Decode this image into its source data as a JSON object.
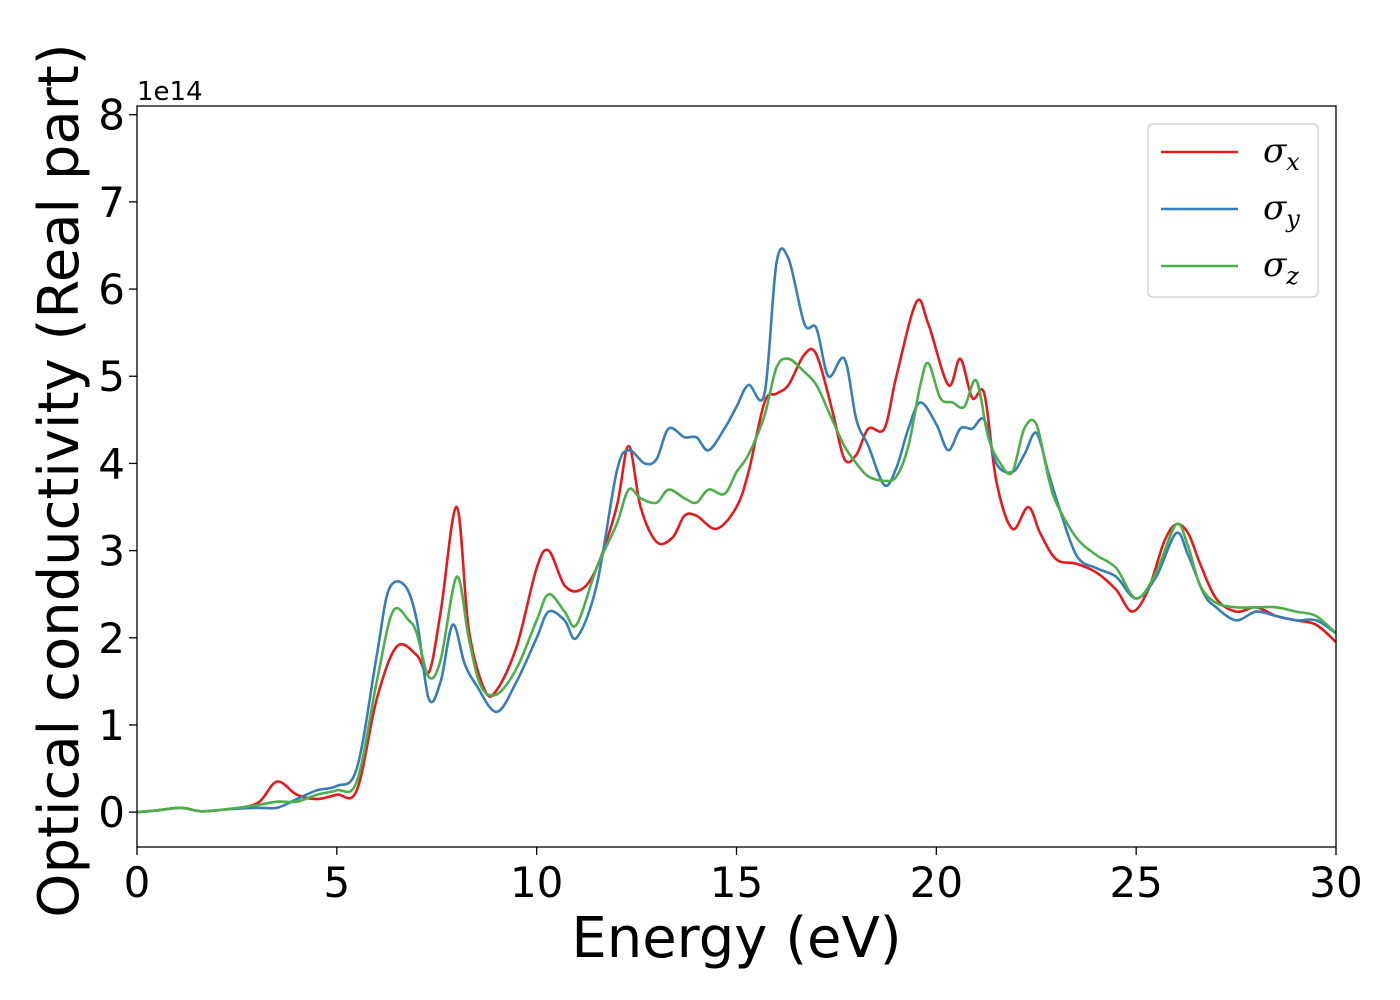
{
  "chart_data": {
    "type": "line",
    "xlabel": "Energy (eV)",
    "ylabel": "Optical conductivity (Real part)",
    "y_offset_label": "1e14",
    "y_scale_factor": 100000000000000.0,
    "xlim": [
      0,
      30
    ],
    "ylim": [
      -0.4,
      8.1
    ],
    "x_ticks": [
      0,
      5,
      10,
      15,
      20,
      25,
      30
    ],
    "x_tick_labels": [
      "0",
      "5",
      "10",
      "15",
      "20",
      "25",
      "30"
    ],
    "y_ticks": [
      0,
      1,
      2,
      3,
      4,
      5,
      6,
      7,
      8
    ],
    "y_tick_labels": [
      "0",
      "1",
      "2",
      "3",
      "4",
      "5",
      "6",
      "7",
      "8"
    ],
    "grid": false,
    "legend_position": "top-right",
    "series": [
      {
        "name": "σx",
        "legend_symbol": "σ",
        "legend_sub": "x",
        "color": "#e41a1c",
        "x": [
          0,
          0.5,
          1.1,
          1.6,
          2.2,
          3.0,
          3.5,
          4.0,
          4.5,
          5.0,
          5.5,
          6.0,
          6.5,
          7.0,
          7.3,
          7.6,
          8.0,
          8.3,
          8.7,
          9.0,
          9.5,
          10.0,
          10.3,
          10.7,
          11.1,
          11.5,
          12.0,
          12.3,
          12.6,
          13.0,
          13.4,
          13.7,
          14.0,
          14.5,
          15.0,
          15.3,
          15.7,
          16.0,
          16.3,
          16.7,
          17.0,
          17.4,
          17.7,
          18.0,
          18.3,
          18.7,
          19.0,
          19.5,
          19.8,
          20.3,
          20.6,
          20.9,
          21.2,
          21.5,
          21.9,
          22.3,
          22.6,
          23.0,
          23.5,
          24.0,
          24.5,
          24.9,
          25.3,
          25.7,
          26.0,
          26.3,
          26.6,
          27.0,
          27.5,
          28.0,
          28.5,
          29.0,
          29.5,
          30.0
        ],
        "y": [
          0.0,
          0.02,
          0.05,
          0.01,
          0.03,
          0.1,
          0.35,
          0.2,
          0.15,
          0.2,
          0.25,
          1.3,
          1.9,
          1.8,
          1.6,
          2.3,
          3.5,
          2.1,
          1.4,
          1.4,
          1.9,
          2.8,
          3.0,
          2.6,
          2.55,
          2.8,
          3.5,
          4.2,
          3.5,
          3.1,
          3.15,
          3.4,
          3.4,
          3.25,
          3.5,
          3.9,
          4.7,
          4.8,
          4.9,
          5.25,
          5.25,
          4.6,
          4.05,
          4.1,
          4.4,
          4.4,
          5.0,
          5.85,
          5.6,
          4.9,
          5.2,
          4.75,
          4.8,
          3.8,
          3.25,
          3.5,
          3.2,
          2.9,
          2.85,
          2.75,
          2.55,
          2.3,
          2.55,
          3.1,
          3.3,
          3.2,
          2.85,
          2.45,
          2.3,
          2.35,
          2.25,
          2.2,
          2.15,
          1.95
        ]
      },
      {
        "name": "σy",
        "legend_symbol": "σ",
        "legend_sub": "y",
        "color": "#377eb8",
        "x": [
          0,
          0.5,
          1.1,
          1.6,
          2.2,
          3.0,
          3.5,
          4.0,
          4.5,
          5.0,
          5.5,
          6.0,
          6.3,
          6.7,
          7.0,
          7.3,
          7.6,
          7.9,
          8.2,
          8.5,
          9.0,
          9.5,
          10.0,
          10.3,
          10.7,
          11.0,
          11.5,
          12.0,
          12.3,
          12.7,
          13.0,
          13.3,
          13.7,
          14.0,
          14.3,
          14.7,
          15.0,
          15.3,
          15.7,
          16.0,
          16.3,
          16.7,
          17.0,
          17.3,
          17.7,
          18.0,
          18.3,
          18.7,
          19.0,
          19.3,
          19.6,
          20.0,
          20.3,
          20.6,
          20.9,
          21.2,
          21.5,
          21.9,
          22.2,
          22.5,
          22.8,
          23.0,
          23.5,
          24.0,
          24.5,
          25.0,
          25.5,
          26.0,
          26.3,
          26.7,
          27.0,
          27.5,
          28.0,
          28.5,
          29.0,
          29.5,
          30.0
        ],
        "y": [
          0.0,
          0.02,
          0.05,
          0.01,
          0.03,
          0.05,
          0.05,
          0.15,
          0.25,
          0.3,
          0.5,
          1.8,
          2.55,
          2.6,
          2.2,
          1.3,
          1.5,
          2.15,
          1.7,
          1.45,
          1.15,
          1.5,
          2.0,
          2.3,
          2.2,
          2.0,
          2.6,
          3.9,
          4.15,
          4.0,
          4.05,
          4.4,
          4.3,
          4.3,
          4.15,
          4.4,
          4.65,
          4.9,
          4.8,
          6.3,
          6.35,
          5.6,
          5.55,
          5.0,
          5.2,
          4.5,
          4.2,
          3.75,
          3.95,
          4.4,
          4.7,
          4.45,
          4.15,
          4.4,
          4.4,
          4.5,
          4.0,
          3.9,
          4.1,
          4.35,
          3.9,
          3.6,
          2.95,
          2.8,
          2.7,
          2.45,
          2.7,
          3.2,
          2.95,
          2.5,
          2.35,
          2.2,
          2.3,
          2.25,
          2.2,
          2.2,
          2.05
        ]
      },
      {
        "name": "σz",
        "legend_symbol": "σ",
        "legend_sub": "z",
        "color": "#4daf4a",
        "x": [
          0,
          0.5,
          1.1,
          1.6,
          2.2,
          3.0,
          3.5,
          4.0,
          4.5,
          5.0,
          5.5,
          6.0,
          6.4,
          6.8,
          7.0,
          7.3,
          7.6,
          8.0,
          8.3,
          8.6,
          9.0,
          9.5,
          10.0,
          10.3,
          10.7,
          11.0,
          11.5,
          12.0,
          12.3,
          12.6,
          13.0,
          13.3,
          13.7,
          14.0,
          14.3,
          14.7,
          15.0,
          15.3,
          15.7,
          16.0,
          16.3,
          16.7,
          17.0,
          17.3,
          17.7,
          18.0,
          18.3,
          18.7,
          19.0,
          19.3,
          19.6,
          19.8,
          20.1,
          20.4,
          20.7,
          21.0,
          21.3,
          21.6,
          21.9,
          22.2,
          22.5,
          22.8,
          23.0,
          23.5,
          24.0,
          24.5,
          25.0,
          25.5,
          26.0,
          26.3,
          26.6,
          27.0,
          27.5,
          28.0,
          28.5,
          29.0,
          29.5,
          30.0
        ],
        "y": [
          0.0,
          0.02,
          0.05,
          0.01,
          0.03,
          0.08,
          0.12,
          0.12,
          0.2,
          0.25,
          0.35,
          1.5,
          2.3,
          2.2,
          2.05,
          1.55,
          1.75,
          2.7,
          2.0,
          1.45,
          1.35,
          1.65,
          2.2,
          2.5,
          2.3,
          2.15,
          2.8,
          3.3,
          3.7,
          3.6,
          3.55,
          3.7,
          3.6,
          3.55,
          3.7,
          3.65,
          3.9,
          4.1,
          4.55,
          5.1,
          5.2,
          5.05,
          4.9,
          4.6,
          4.2,
          4.0,
          3.85,
          3.8,
          3.85,
          4.2,
          4.9,
          5.15,
          4.75,
          4.7,
          4.65,
          4.95,
          4.3,
          4.0,
          3.9,
          4.4,
          4.45,
          3.85,
          3.55,
          3.15,
          2.95,
          2.8,
          2.45,
          2.75,
          3.3,
          3.05,
          2.6,
          2.4,
          2.35,
          2.35,
          2.35,
          2.3,
          2.25,
          2.05
        ]
      }
    ]
  }
}
